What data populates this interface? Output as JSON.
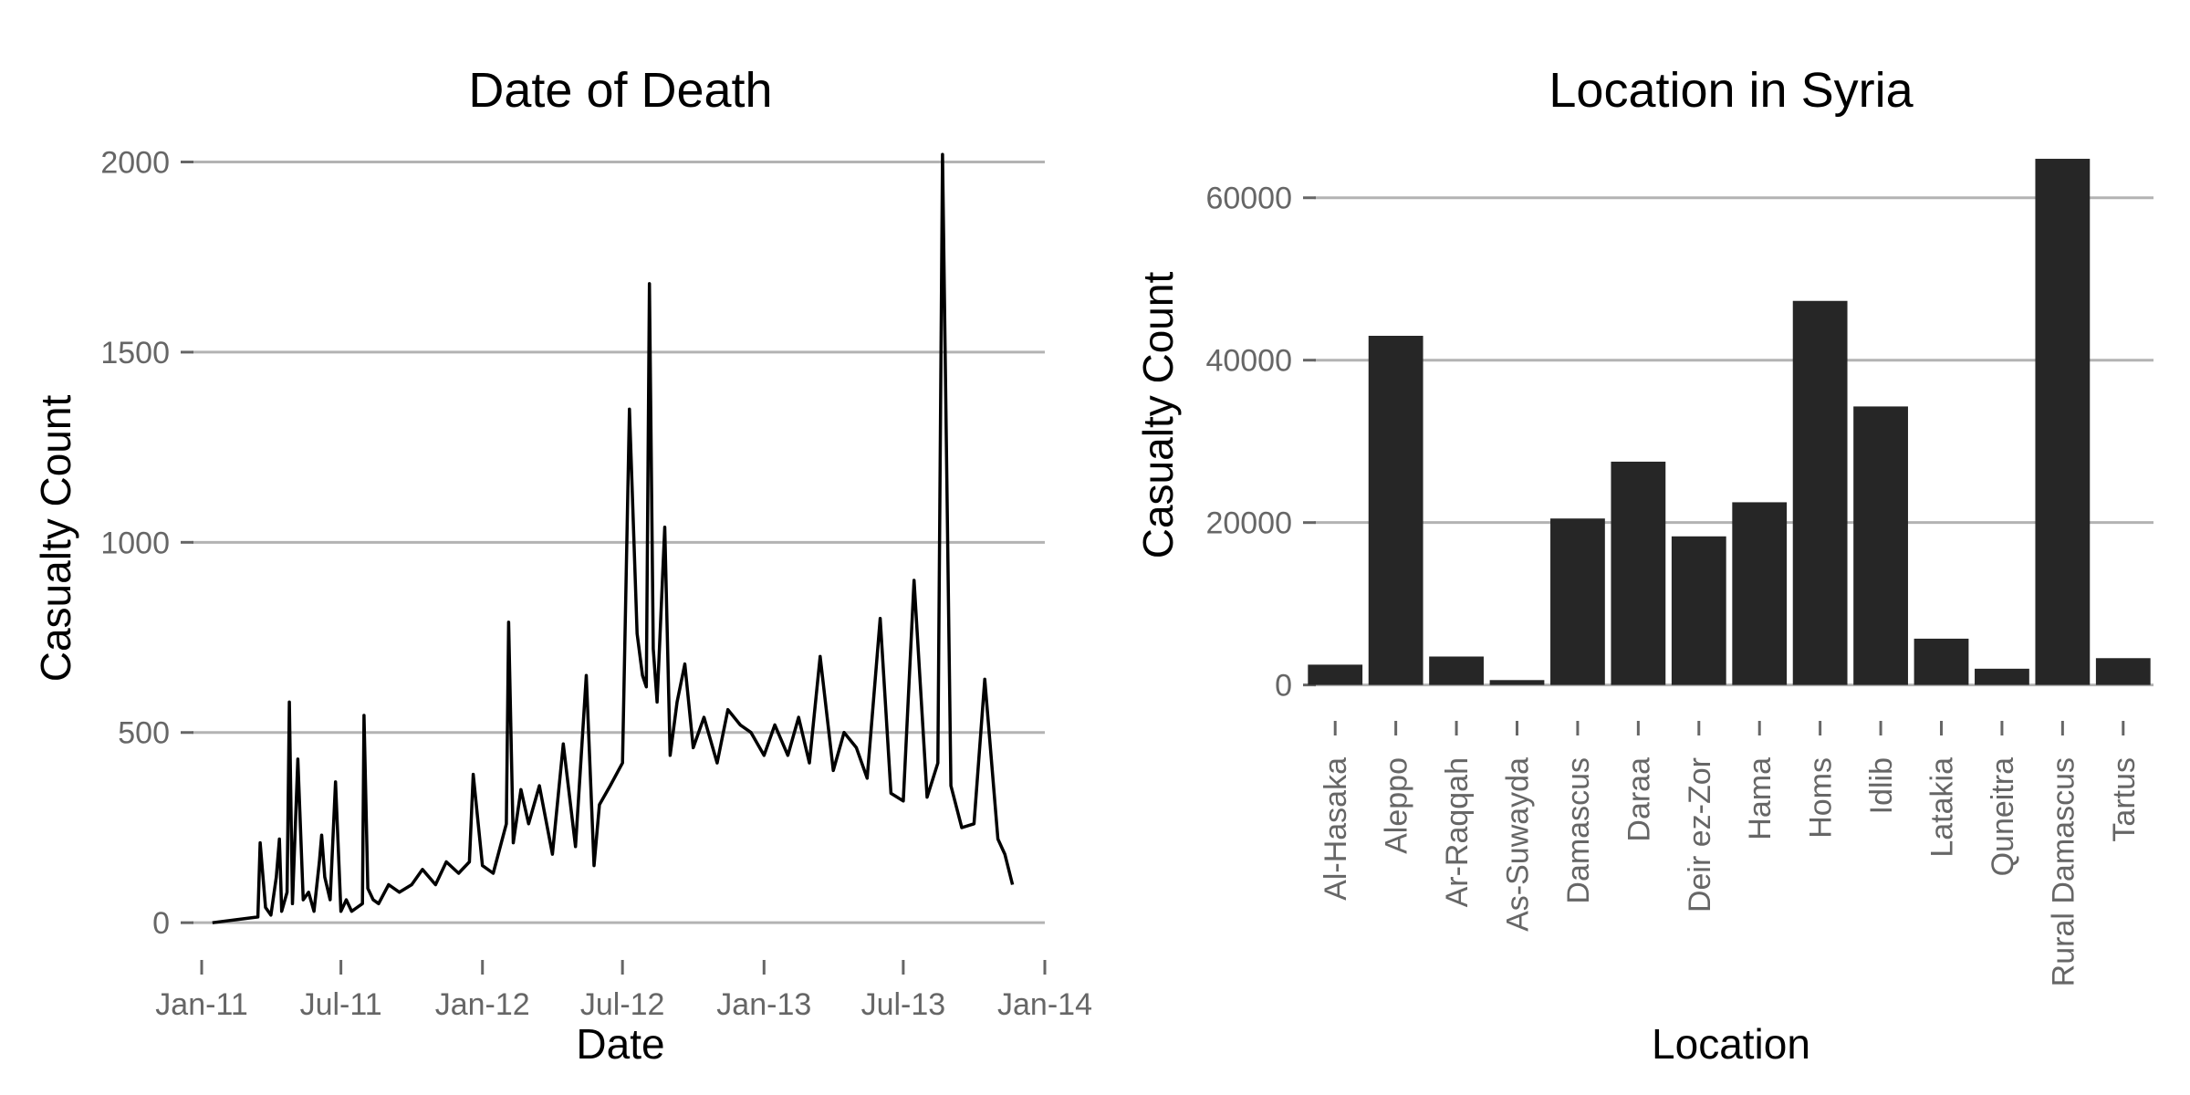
{
  "chart_data": [
    {
      "type": "line",
      "title": "Date of Death",
      "xlabel": "Date",
      "ylabel": "Casualty Count",
      "x_tick_labels": [
        "Jan-11",
        "Jul-11",
        "Jan-12",
        "Jul-12",
        "Jan-13",
        "Jul-13",
        "Jan-14"
      ],
      "x_tick_dates": [
        "2011-01-01",
        "2011-07-01",
        "2012-01-01",
        "2012-07-01",
        "2013-01-01",
        "2013-07-01",
        "2014-01-01"
      ],
      "xlim": [
        "2010-12-13",
        "2014-01-01"
      ],
      "y_ticks": [
        0,
        500,
        1000,
        1500,
        2000
      ],
      "y_tick_labels": [
        "0",
        "500",
        "1000",
        "1500",
        "2000"
      ],
      "ylim": [
        -50,
        2030
      ],
      "grid": true,
      "line_color": "#000000",
      "series": [
        {
          "x": [
            "2011-01-15",
            "2011-03-15",
            "2011-03-18",
            "2011-03-25",
            "2011-04-01",
            "2011-04-08",
            "2011-04-12",
            "2011-04-15",
            "2011-04-22",
            "2011-04-25",
            "2011-04-29",
            "2011-05-06",
            "2011-05-13",
            "2011-05-20",
            "2011-05-27",
            "2011-06-03",
            "2011-06-06",
            "2011-06-10",
            "2011-06-17",
            "2011-06-24",
            "2011-07-01",
            "2011-07-08",
            "2011-07-15",
            "2011-07-22",
            "2011-07-29",
            "2011-07-31",
            "2011-08-05",
            "2011-08-12",
            "2011-08-19",
            "2011-09-01",
            "2011-09-15",
            "2011-10-01",
            "2011-10-15",
            "2011-11-01",
            "2011-11-15",
            "2011-12-01",
            "2011-12-15",
            "2011-12-20",
            "2012-01-01",
            "2012-01-15",
            "2012-02-01",
            "2012-02-04",
            "2012-02-10",
            "2012-02-20",
            "2012-03-01",
            "2012-03-15",
            "2012-04-01",
            "2012-04-15",
            "2012-05-01",
            "2012-05-15",
            "2012-05-25",
            "2012-06-01",
            "2012-06-15",
            "2012-07-01",
            "2012-07-10",
            "2012-07-20",
            "2012-07-27",
            "2012-08-01",
            "2012-08-05",
            "2012-08-10",
            "2012-08-15",
            "2012-08-25",
            "2012-09-01",
            "2012-09-10",
            "2012-09-20",
            "2012-10-01",
            "2012-10-15",
            "2012-11-01",
            "2012-11-15",
            "2012-12-01",
            "2012-12-15",
            "2013-01-01",
            "2013-01-15",
            "2013-02-01",
            "2013-02-15",
            "2013-03-01",
            "2013-03-15",
            "2013-04-01",
            "2013-04-15",
            "2013-05-01",
            "2013-05-15",
            "2013-06-01",
            "2013-06-15",
            "2013-07-01",
            "2013-07-15",
            "2013-08-01",
            "2013-08-15",
            "2013-08-21",
            "2013-09-01",
            "2013-09-15",
            "2013-10-01",
            "2013-10-15",
            "2013-11-01",
            "2013-11-10",
            "2013-11-20"
          ],
          "y": [
            0,
            15,
            210,
            40,
            20,
            120,
            220,
            30,
            80,
            580,
            50,
            430,
            60,
            80,
            30,
            160,
            230,
            120,
            60,
            370,
            30,
            60,
            30,
            40,
            50,
            545,
            90,
            60,
            50,
            100,
            80,
            100,
            140,
            100,
            160,
            130,
            160,
            390,
            150,
            130,
            260,
            790,
            210,
            350,
            260,
            360,
            180,
            470,
            200,
            650,
            150,
            310,
            360,
            420,
            1350,
            760,
            650,
            620,
            1680,
            720,
            580,
            1040,
            440,
            580,
            680,
            460,
            540,
            420,
            560,
            520,
            500,
            440,
            520,
            440,
            540,
            420,
            700,
            400,
            500,
            460,
            380,
            800,
            340,
            320,
            900,
            330,
            420,
            2020,
            360,
            250,
            260,
            640,
            220,
            180,
            100
          ]
        }
      ]
    },
    {
      "type": "bar",
      "title": "Location in Syria",
      "xlabel": "Location",
      "ylabel": "Casualty Count",
      "categories": [
        "Al-Hasaka",
        "Aleppo",
        "Ar-Raqqah",
        "As-Suwayda",
        "Damascus",
        "Daraa",
        "Deir ez-Zor",
        "Hama",
        "Homs",
        "Idlib",
        "Latakia",
        "Quneitra",
        "Rural Damascus",
        "Tartus"
      ],
      "values": [
        2500,
        43000,
        3500,
        600,
        20500,
        27500,
        18300,
        22500,
        47300,
        34300,
        5700,
        2000,
        64800,
        3300
      ],
      "y_ticks": [
        0,
        20000,
        40000,
        60000
      ],
      "y_tick_labels": [
        "0",
        "20000",
        "40000",
        "60000"
      ],
      "ylim": [
        -3300,
        67500
      ],
      "grid": true,
      "bar_color": "#262626"
    }
  ]
}
